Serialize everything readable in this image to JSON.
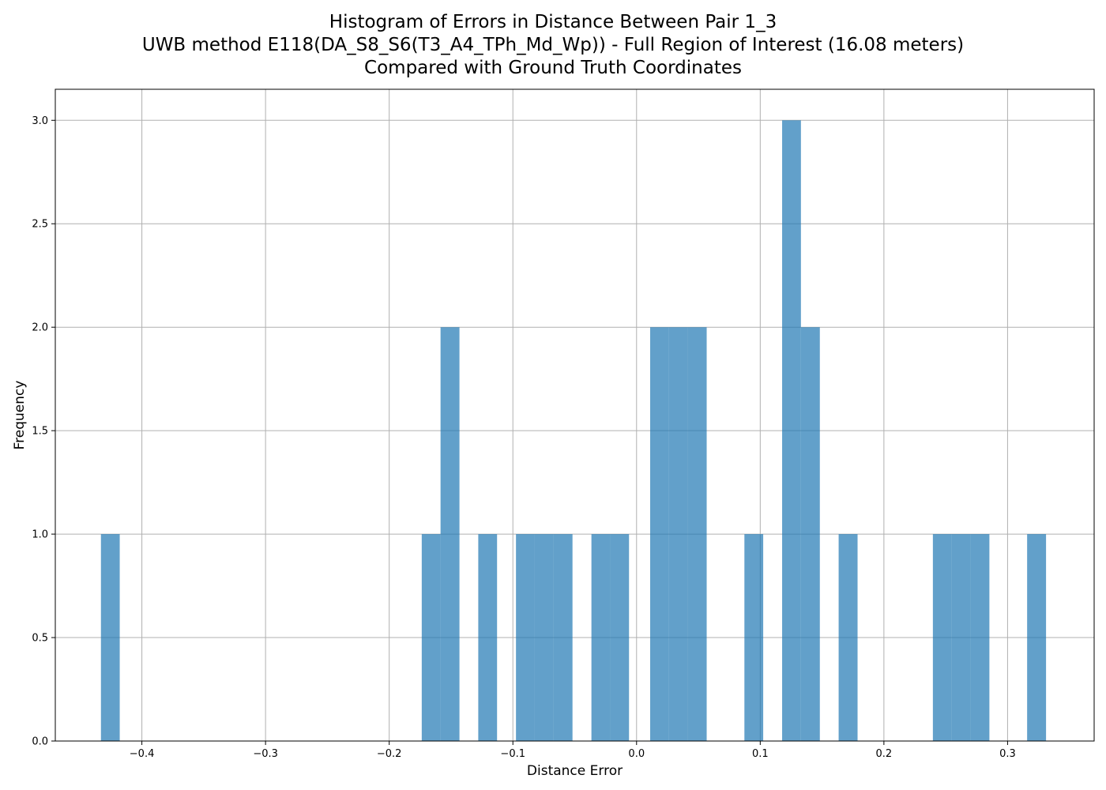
{
  "chart_data": {
    "type": "bar",
    "title_lines": [
      "Histogram of Errors in Distance Between Pair 1_3",
      "UWB method E118(DA_S8_S6(T3_A4_TPh_Md_Wp)) - Full Region of Interest (16.08 meters)",
      "Compared with Ground Truth Coordinates"
    ],
    "xlabel": "Distance Error",
    "ylabel": "Frequency",
    "xlim": [
      -0.47,
      0.37
    ],
    "ylim": [
      0,
      3.15
    ],
    "grid": true,
    "bar_color": "#1f77b4",
    "bar_opacity": 0.7,
    "x_ticks": [
      {
        "value": -0.4,
        "label": "−0.4"
      },
      {
        "value": -0.3,
        "label": "−0.3"
      },
      {
        "value": -0.2,
        "label": "−0.2"
      },
      {
        "value": -0.1,
        "label": "−0.1"
      },
      {
        "value": 0.0,
        "label": "0.0"
      },
      {
        "value": 0.1,
        "label": "0.1"
      },
      {
        "value": 0.2,
        "label": "0.2"
      },
      {
        "value": 0.3,
        "label": "0.3"
      }
    ],
    "y_ticks": [
      {
        "value": 0.0,
        "label": "0.0"
      },
      {
        "value": 0.5,
        "label": "0.5"
      },
      {
        "value": 1.0,
        "label": "1.0"
      },
      {
        "value": 1.5,
        "label": "1.5"
      },
      {
        "value": 2.0,
        "label": "2.0"
      },
      {
        "value": 2.5,
        "label": "2.5"
      },
      {
        "value": 3.0,
        "label": "3.0"
      }
    ],
    "bins": [
      {
        "x0": -0.4331,
        "x1": -0.4179,
        "count": 1
      },
      {
        "x0": -0.1737,
        "x1": -0.1585,
        "count": 1
      },
      {
        "x0": -0.1585,
        "x1": -0.1432,
        "count": 2
      },
      {
        "x0": -0.128,
        "x1": -0.1128,
        "count": 1
      },
      {
        "x0": -0.0975,
        "x1": -0.0823,
        "count": 1
      },
      {
        "x0": -0.0823,
        "x1": -0.067,
        "count": 1
      },
      {
        "x0": -0.067,
        "x1": -0.0518,
        "count": 1
      },
      {
        "x0": -0.0365,
        "x1": -0.0213,
        "count": 1
      },
      {
        "x0": -0.0213,
        "x1": -0.0061,
        "count": 1
      },
      {
        "x0": 0.011,
        "x1": 0.0262,
        "count": 2
      },
      {
        "x0": 0.0262,
        "x1": 0.0414,
        "count": 2
      },
      {
        "x0": 0.0414,
        "x1": 0.0567,
        "count": 2
      },
      {
        "x0": 0.0872,
        "x1": 0.1024,
        "count": 1
      },
      {
        "x0": 0.1177,
        "x1": 0.1329,
        "count": 3
      },
      {
        "x0": 0.1329,
        "x1": 0.1482,
        "count": 2
      },
      {
        "x0": 0.1634,
        "x1": 0.1787,
        "count": 1
      },
      {
        "x0": 0.2396,
        "x1": 0.2549,
        "count": 1
      },
      {
        "x0": 0.2549,
        "x1": 0.2701,
        "count": 1
      },
      {
        "x0": 0.2701,
        "x1": 0.2853,
        "count": 1
      },
      {
        "x0": 0.3158,
        "x1": 0.3311,
        "count": 1
      }
    ]
  }
}
